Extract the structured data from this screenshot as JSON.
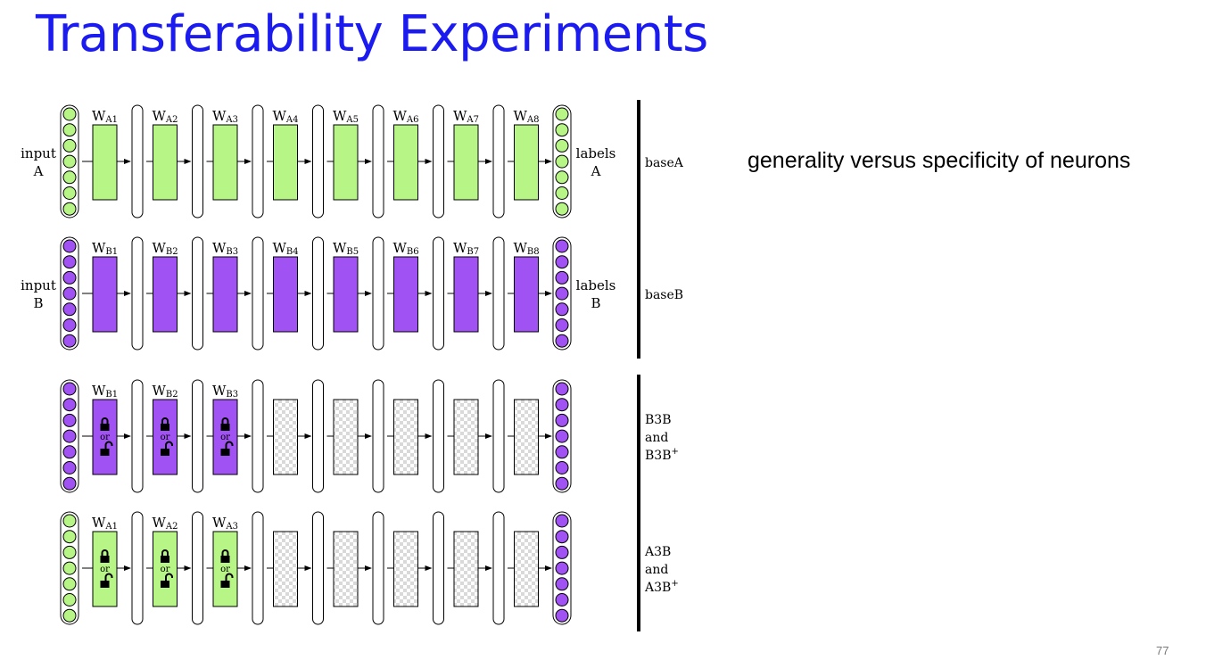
{
  "title": "Transferability Experiments",
  "note": "generality versus specificity of neurons",
  "slide_number": "77",
  "colors": {
    "title": "#1b1bf0",
    "green": "#b6f586",
    "purple": "#a052f2",
    "node_green": "#b6f586",
    "node_purple": "#a052f2"
  },
  "rows": [
    {
      "id": "baseA",
      "input_label": [
        "input",
        "A"
      ],
      "output_label": [
        "labels",
        "A"
      ],
      "node_color": "green",
      "blocks": [
        {
          "w": "W",
          "sub": "A1",
          "fill": "green",
          "lock": false
        },
        {
          "w": "W",
          "sub": "A2",
          "fill": "green",
          "lock": false
        },
        {
          "w": "W",
          "sub": "A3",
          "fill": "green",
          "lock": false
        },
        {
          "w": "W",
          "sub": "A4",
          "fill": "green",
          "lock": false
        },
        {
          "w": "W",
          "sub": "A5",
          "fill": "green",
          "lock": false
        },
        {
          "w": "W",
          "sub": "A6",
          "fill": "green",
          "lock": false
        },
        {
          "w": "W",
          "sub": "A7",
          "fill": "green",
          "lock": false
        },
        {
          "w": "W",
          "sub": "A8",
          "fill": "green",
          "lock": false
        }
      ],
      "side_label": [
        "baseA"
      ]
    },
    {
      "id": "baseB",
      "input_label": [
        "input",
        "B"
      ],
      "output_label": [
        "labels",
        "B"
      ],
      "node_color": "purple",
      "blocks": [
        {
          "w": "W",
          "sub": "B1",
          "fill": "purple",
          "lock": false
        },
        {
          "w": "W",
          "sub": "B2",
          "fill": "purple",
          "lock": false
        },
        {
          "w": "W",
          "sub": "B3",
          "fill": "purple",
          "lock": false
        },
        {
          "w": "W",
          "sub": "B4",
          "fill": "purple",
          "lock": false
        },
        {
          "w": "W",
          "sub": "B5",
          "fill": "purple",
          "lock": false
        },
        {
          "w": "W",
          "sub": "B6",
          "fill": "purple",
          "lock": false
        },
        {
          "w": "W",
          "sub": "B7",
          "fill": "purple",
          "lock": false
        },
        {
          "w": "W",
          "sub": "B8",
          "fill": "purple",
          "lock": false
        }
      ],
      "side_label": [
        "baseB"
      ]
    },
    {
      "id": "B3B",
      "input_label": [],
      "output_label": [],
      "node_color": "purple",
      "blocks": [
        {
          "w": "W",
          "sub": "B1",
          "fill": "purple",
          "lock": true
        },
        {
          "w": "W",
          "sub": "B2",
          "fill": "purple",
          "lock": true
        },
        {
          "w": "W",
          "sub": "B3",
          "fill": "purple",
          "lock": true
        },
        {
          "w": "",
          "sub": "",
          "fill": "checker",
          "lock": false
        },
        {
          "w": "",
          "sub": "",
          "fill": "checker",
          "lock": false
        },
        {
          "w": "",
          "sub": "",
          "fill": "checker",
          "lock": false
        },
        {
          "w": "",
          "sub": "",
          "fill": "checker",
          "lock": false
        },
        {
          "w": "",
          "sub": "",
          "fill": "checker",
          "lock": false
        }
      ],
      "side_label": [
        "B3B",
        "and",
        "B3B+"
      ]
    },
    {
      "id": "A3B",
      "input_label": [],
      "output_label": [],
      "input_node_color": "green",
      "node_color": "purple",
      "blocks": [
        {
          "w": "W",
          "sub": "A1",
          "fill": "green",
          "lock": true
        },
        {
          "w": "W",
          "sub": "A2",
          "fill": "green",
          "lock": true
        },
        {
          "w": "W",
          "sub": "A3",
          "fill": "green",
          "lock": true
        },
        {
          "w": "",
          "sub": "",
          "fill": "checker",
          "lock": false
        },
        {
          "w": "",
          "sub": "",
          "fill": "checker",
          "lock": false
        },
        {
          "w": "",
          "sub": "",
          "fill": "checker",
          "lock": false
        },
        {
          "w": "",
          "sub": "",
          "fill": "checker",
          "lock": false
        },
        {
          "w": "",
          "sub": "",
          "fill": "checker",
          "lock": false
        }
      ],
      "side_label": [
        "A3B",
        "and",
        "A3B+"
      ]
    }
  ],
  "or_text": "or"
}
